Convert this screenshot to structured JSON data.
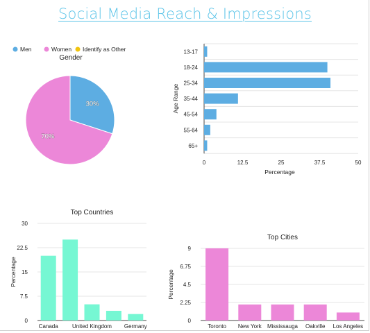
{
  "page": {
    "title": "Social Media Reach & Impressions"
  },
  "chart_data": [
    {
      "id": "gender",
      "type": "pie",
      "title": "Gender",
      "legend_position": "top",
      "legend": [
        "Men",
        "Women",
        "Identify as Other"
      ],
      "colors": [
        "#5dade2",
        "#ec87d8",
        "#f1c40f"
      ],
      "slices": [
        {
          "label": "Men",
          "value": 30,
          "display": "30%"
        },
        {
          "label": "Women",
          "value": 70,
          "display": "70%"
        },
        {
          "label": "Identify as Other",
          "value": 0,
          "display": ""
        }
      ]
    },
    {
      "id": "age",
      "type": "bar",
      "orientation": "horizontal",
      "title": "",
      "xlabel": "Percentage",
      "ylabel": "Age Range",
      "categories": [
        "13-17",
        "18-24",
        "25-34",
        "35-44",
        "45-54",
        "55-64",
        "65+"
      ],
      "values": [
        1,
        40,
        41,
        11,
        4,
        2,
        1
      ],
      "xlim": [
        0,
        50
      ],
      "xticks": [
        "0",
        "12.5",
        "25",
        "37.5",
        "50"
      ],
      "xtick_values": [
        0,
        12.5,
        25,
        37.5,
        50
      ],
      "color": "#5dade2",
      "grid": true
    },
    {
      "id": "countries",
      "type": "bar",
      "title": "Top Countries",
      "xlabel": "",
      "ylabel": "Percentage",
      "categories": [
        "Canada",
        "",
        "United Kingdom",
        "",
        "Germany"
      ],
      "values": [
        20,
        25,
        5,
        3,
        2
      ],
      "ylim": [
        0,
        30
      ],
      "yticks": [
        "0",
        "7.5",
        "15",
        "22.5",
        "30"
      ],
      "ytick_values": [
        0,
        7.5,
        15,
        22.5,
        30
      ],
      "color": "#76f7d3",
      "grid": true
    },
    {
      "id": "cities",
      "type": "bar",
      "title": "Top Cities",
      "xlabel": "",
      "ylabel": "Percentage",
      "categories": [
        "Toronto",
        "New York",
        "Mississauga",
        "Oakville",
        "Los Angeles"
      ],
      "values": [
        9,
        2,
        2,
        2,
        1
      ],
      "ylim": [
        0,
        9
      ],
      "yticks": [
        "0",
        "2.25",
        "4.5",
        "6.75",
        "9"
      ],
      "ytick_values": [
        0,
        2.25,
        4.5,
        6.75,
        9
      ],
      "color": "#ec87d8",
      "grid": true
    }
  ]
}
